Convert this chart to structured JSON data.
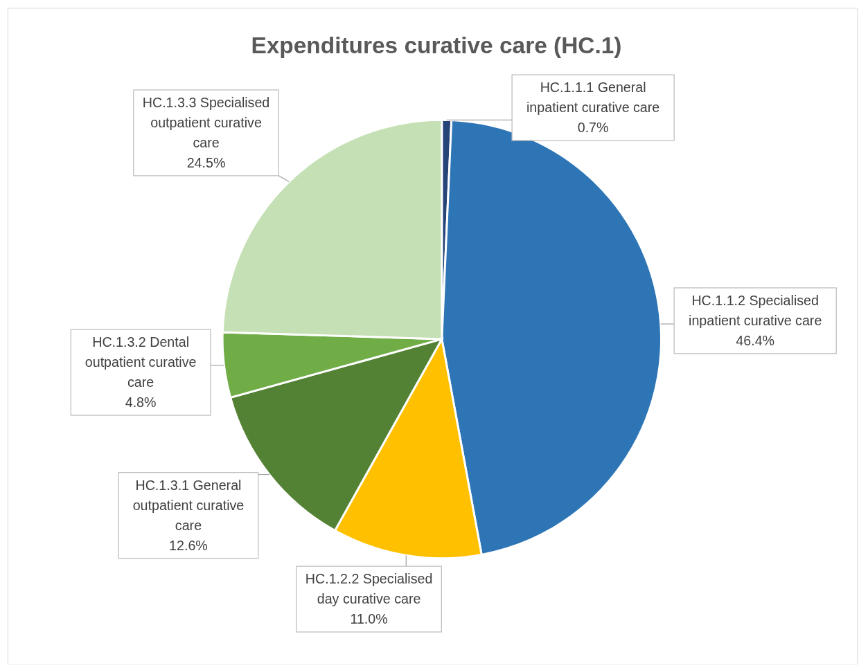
{
  "chart_data": {
    "type": "pie",
    "title": "Expenditures curative care (HC.1)",
    "categories": [
      "HC.1.1.1 General inpatient curative care",
      "HC.1.1.2 Specialised inpatient curative care",
      "HC.1.2.2 Specialised day curative care",
      "HC.1.3.1 General outpatient curative care",
      "HC.1.3.2 Dental outpatient curative care",
      "HC.1.3.3 Specialised outpatient curative care"
    ],
    "values": [
      0.7,
      46.4,
      11.0,
      12.6,
      4.8,
      24.5
    ],
    "value_labels": [
      "0.7%",
      "46.4%",
      "11.0%",
      "12.6%",
      "4.8%",
      "24.5%"
    ],
    "colors": [
      "#264478",
      "#2e75b6",
      "#ffc000",
      "#548235",
      "#70ad47",
      "#c5e0b4"
    ]
  }
}
